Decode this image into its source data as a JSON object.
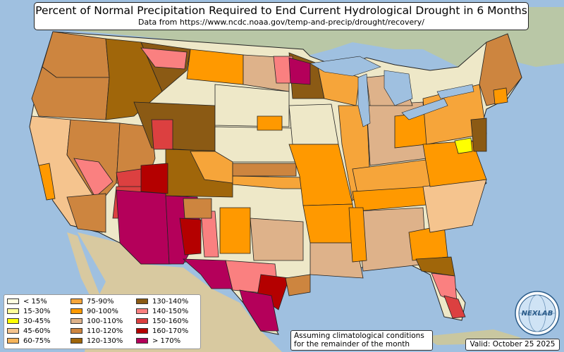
{
  "title": "Percent of Normal Precipitation Required to End Current Hydrological Drought in 6 Months",
  "subtitle": "Data from https://www.ncdc.noaa.gov/temp-and-precip/drought/recovery/",
  "legend": [
    {
      "label": "< 15%",
      "color": "#ffffe0"
    },
    {
      "label": "15-30%",
      "color": "#ffff99"
    },
    {
      "label": "30-45%",
      "color": "#ffff00"
    },
    {
      "label": "45-60%",
      "color": "#f5c48e"
    },
    {
      "label": "60-75%",
      "color": "#f6b45a"
    },
    {
      "label": "75-90%",
      "color": "#f6a53a"
    },
    {
      "label": "90-100%",
      "color": "#ff9900"
    },
    {
      "label": "100-110%",
      "color": "#deb28a"
    },
    {
      "label": "110-120%",
      "color": "#cd853f"
    },
    {
      "label": "120-130%",
      "color": "#a0660a"
    },
    {
      "label": "130-140%",
      "color": "#8b5a14"
    },
    {
      "label": "140-150%",
      "color": "#fa8080"
    },
    {
      "label": "150-160%",
      "color": "#dc4040"
    },
    {
      "label": "160-170%",
      "color": "#b40000"
    },
    {
      "label": "> 170%",
      "color": "#b4005a"
    }
  ],
  "note_line1": "Assuming climatological conditions",
  "note_line2": "for the remainder of the month",
  "valid": "Valid: October 25 2025",
  "logo_text": "NEXLAB"
}
